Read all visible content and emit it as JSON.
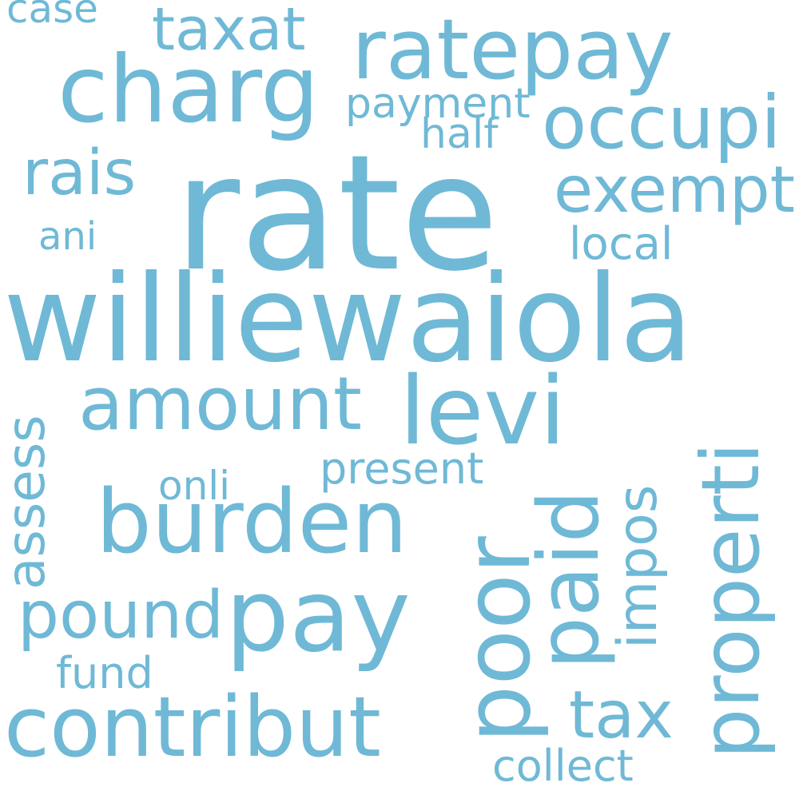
{
  "wordcloud": {
    "color": "#6fb9d6",
    "words": {
      "rate": "rate",
      "williewaiola": "williewaiola",
      "charg": "charg",
      "ratepay": "ratepay",
      "burden": "burden",
      "levi": "levi",
      "amount": "amount",
      "pay": "pay",
      "contribut": "contribut",
      "poor": "poor",
      "properti": "properti",
      "paid": "paid",
      "occupi": "occupi",
      "exempt": "exempt",
      "taxat": "taxat",
      "rais": "rais",
      "pound": "pound",
      "tax": "tax",
      "assess": "assess",
      "impos": "impos",
      "payment": "payment",
      "present": "present",
      "collect": "collect",
      "local": "local",
      "half": "half",
      "onli": "onli",
      "fund": "fund",
      "ani": "ani",
      "case": "case"
    }
  }
}
